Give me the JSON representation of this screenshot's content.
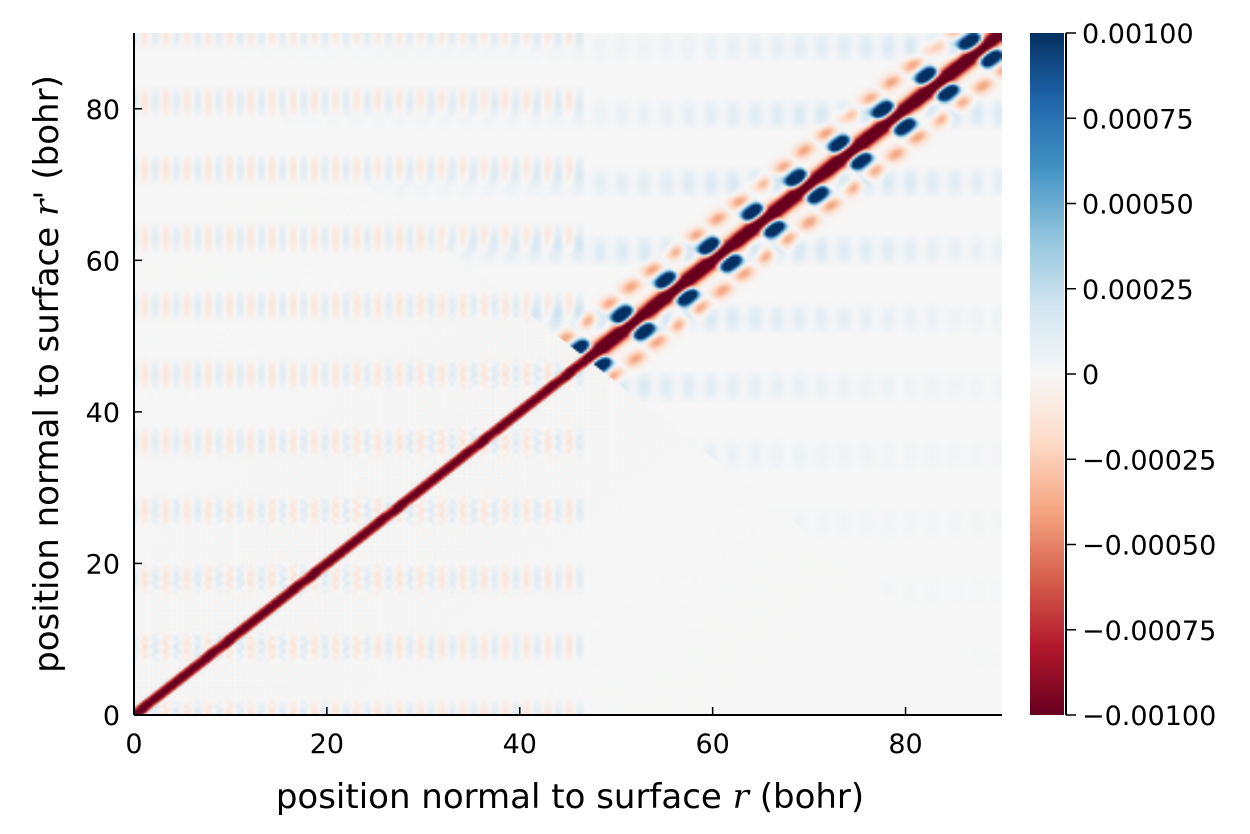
{
  "chart_data": {
    "type": "heatmap",
    "title": "",
    "xlabel_text": "position normal to surface ",
    "xlabel_symbol": "r",
    "xlabel_unit": " (bohr)",
    "ylabel_text": "position normal to surface ",
    "ylabel_symbol": "r'",
    "ylabel_unit": " (bohr)",
    "xlim": [
      0,
      90
    ],
    "ylim": [
      0,
      90
    ],
    "x_ticks": [
      {
        "value": 0,
        "label": "0"
      },
      {
        "value": 20,
        "label": "20"
      },
      {
        "value": 40,
        "label": "40"
      },
      {
        "value": 60,
        "label": "60"
      },
      {
        "value": 80,
        "label": "80"
      }
    ],
    "y_ticks": [
      {
        "value": 0,
        "label": "0"
      },
      {
        "value": 20,
        "label": "20"
      },
      {
        "value": 40,
        "label": "40"
      },
      {
        "value": 60,
        "label": "60"
      },
      {
        "value": 80,
        "label": "80"
      }
    ],
    "colorbar": {
      "colormap": "RdBu",
      "clim": [
        -0.001,
        0.001
      ],
      "ticks": [
        {
          "value": 0.001,
          "label": "0.00100"
        },
        {
          "value": 0.00075,
          "label": "0.00075"
        },
        {
          "value": 0.0005,
          "label": "0.00050"
        },
        {
          "value": 0.00025,
          "label": "0.00025"
        },
        {
          "value": 0,
          "label": "0"
        },
        {
          "value": -0.00025,
          "label": "−0.00025"
        },
        {
          "value": -0.0005,
          "label": "−0.00050"
        },
        {
          "value": -0.00075,
          "label": "−0.00075"
        },
        {
          "value": -0.001,
          "label": "−0.00100"
        }
      ]
    },
    "structure": {
      "diagonal_value": -0.001,
      "interface_position": 47,
      "lobe_period_upper": 4.5,
      "lobe_value": 0.001,
      "grid": false,
      "legend": "none"
    },
    "colors": {
      "max": "#053061",
      "zero": "#f7f7f7",
      "min": "#67001f"
    }
  }
}
